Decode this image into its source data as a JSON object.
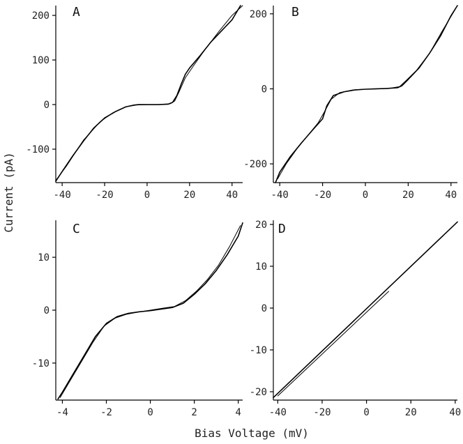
{
  "figure": {
    "xlabel": "Bias Voltage (mV)",
    "ylabel": "Current (pA)"
  },
  "chart_data": [
    {
      "type": "line",
      "panel": "A",
      "xlim": [
        -43,
        45
      ],
      "ylim": [
        -175,
        222
      ],
      "xticks": [
        -40,
        -20,
        0,
        20,
        40
      ],
      "yticks": [
        -100,
        0,
        100,
        200
      ],
      "series": [
        {
          "x": [
            -43,
            -40,
            -35,
            -30,
            -25,
            -20,
            -15,
            -10,
            -6,
            -4,
            -2,
            0,
            5,
            10,
            12,
            14,
            16,
            18,
            20,
            25,
            30,
            35,
            40,
            44
          ],
          "y": [
            -172,
            -150,
            -115,
            -82,
            -52,
            -30,
            -16,
            -5,
            -1,
            0,
            0,
            0,
            0,
            1,
            5,
            20,
            45,
            68,
            82,
            110,
            140,
            165,
            190,
            222
          ]
        },
        {
          "x": [
            -43,
            -38,
            -30,
            -22,
            -16,
            -10,
            -5,
            0,
            6,
            11,
            13,
            15,
            18,
            22,
            28,
            34,
            40,
            45
          ],
          "y": [
            -170,
            -138,
            -80,
            -38,
            -18,
            -5,
            -1,
            0,
            0,
            2,
            8,
            28,
            60,
            88,
            128,
            165,
            200,
            222
          ]
        }
      ]
    },
    {
      "type": "line",
      "panel": "B",
      "xlim": [
        -43,
        43
      ],
      "ylim": [
        -250,
        222
      ],
      "xticks": [
        -40,
        -20,
        0,
        20,
        40
      ],
      "yticks": [
        -200,
        0,
        200
      ],
      "series": [
        {
          "x": [
            -42,
            -40,
            -35,
            -30,
            -25,
            -20,
            -18,
            -15,
            -10,
            -5,
            0,
            5,
            10,
            15,
            17,
            20,
            25,
            30,
            35,
            40,
            43
          ],
          "y": [
            -250,
            -222,
            -180,
            -145,
            -112,
            -80,
            -45,
            -18,
            -8,
            -3,
            -1,
            0,
            1,
            3,
            8,
            25,
            55,
            95,
            140,
            195,
            222
          ]
        },
        {
          "x": [
            -41,
            -37,
            -32,
            -27,
            -22,
            -19,
            -16,
            -12,
            -6,
            0,
            6,
            12,
            16,
            19,
            24,
            30,
            36,
            42
          ],
          "y": [
            -240,
            -200,
            -160,
            -125,
            -90,
            -60,
            -28,
            -10,
            -3,
            -1,
            0,
            2,
            6,
            22,
            50,
            95,
            155,
            212
          ]
        }
      ]
    },
    {
      "type": "line",
      "panel": "C",
      "xlim": [
        -4.3,
        4.2
      ],
      "ylim": [
        -17,
        17
      ],
      "xticks": [
        -4,
        -2,
        0,
        2,
        4
      ],
      "yticks": [
        -10,
        0,
        10
      ],
      "series": [
        {
          "x": [
            -4.2,
            -4,
            -3.5,
            -3,
            -2.5,
            -2,
            -1.5,
            -1,
            -0.5,
            0,
            0.5,
            1,
            1.5,
            2,
            2.5,
            3,
            3.5,
            4,
            4.2
          ],
          "y": [
            -16.8,
            -15.5,
            -12,
            -8.5,
            -5,
            -2.5,
            -1.2,
            -0.6,
            -0.3,
            -0.1,
            0.2,
            0.5,
            1.3,
            3,
            5,
            7.5,
            10.5,
            14,
            16.5
          ]
        },
        {
          "x": [
            -4.1,
            -3.6,
            -3.1,
            -2.6,
            -2.1,
            -1.6,
            -1.1,
            -0.6,
            0,
            0.6,
            1.1,
            1.6,
            2.1,
            2.6,
            3.1,
            3.6,
            4.1
          ],
          "y": [
            -16.5,
            -13,
            -9.5,
            -6,
            -3,
            -1.5,
            -0.8,
            -0.4,
            0,
            0.4,
            0.7,
            1.8,
            3.6,
            5.8,
            8.5,
            12,
            16
          ]
        }
      ]
    },
    {
      "type": "line",
      "panel": "D",
      "xlim": [
        -42,
        41
      ],
      "ylim": [
        -22,
        21
      ],
      "xticks": [
        -40,
        -20,
        0,
        20,
        40
      ],
      "yticks": [
        -20,
        -10,
        0,
        10,
        20
      ],
      "series": [
        {
          "x": [
            -42,
            41
          ],
          "y": [
            -21.4,
            20.6
          ]
        },
        {
          "x": [
            -40,
            10
          ],
          "y": [
            -21.0,
            4.0
          ]
        }
      ]
    }
  ]
}
